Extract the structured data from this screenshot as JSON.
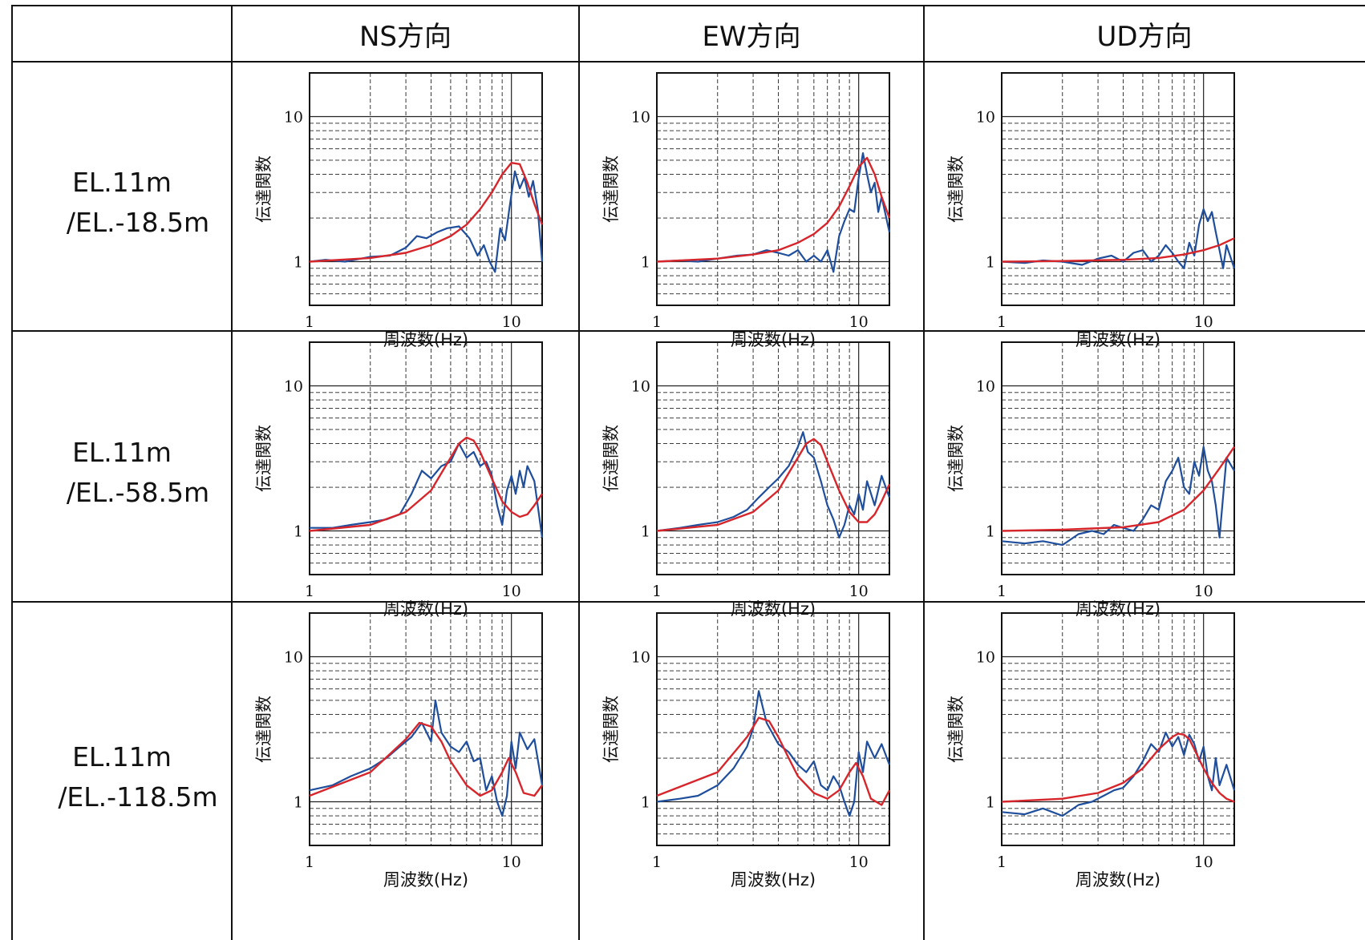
{
  "header": {
    "columns": [
      "NS方向",
      "EW方向",
      "UD方向"
    ]
  },
  "rows": [
    {
      "label_line1": "EL.11m",
      "label_line2": "/EL.-18.5m"
    },
    {
      "label_line1": "EL.11m",
      "label_line2": "/EL.-58.5m"
    },
    {
      "label_line1": "EL.11m",
      "label_line2": "/EL.-118.5m"
    }
  ],
  "axes": {
    "xlabel": "周波数(Hz)",
    "ylabel": "伝達関数",
    "xticks": [
      "1",
      "10"
    ],
    "yticks": [
      "1",
      "10"
    ]
  },
  "colors": {
    "observed": "#1f4e9c",
    "model": "#d7262b",
    "grid": "#222222",
    "frame": "#111111"
  },
  "chart_data": [
    {
      "type": "line",
      "row": 0,
      "col": 0,
      "xscale": "log",
      "yscale": "log",
      "xlim": [
        1,
        14.2
      ],
      "ylim": [
        0.5,
        20
      ],
      "series": [
        {
          "kind": "observed",
          "x": [
            1,
            1.2,
            1.5,
            1.8,
            2,
            2.5,
            3,
            3.4,
            3.8,
            4.3,
            4.8,
            5.5,
            6.2,
            6.8,
            7.3,
            7.8,
            8.3,
            8.8,
            9.3,
            9.8,
            10.4,
            11.0,
            11.6,
            12.2,
            12.8,
            13.5,
            14.2
          ],
          "y": [
            1.0,
            1.03,
            1.0,
            1.05,
            1.08,
            1.1,
            1.25,
            1.5,
            1.45,
            1.6,
            1.7,
            1.75,
            1.45,
            1.1,
            1.3,
            1.0,
            0.85,
            1.7,
            1.4,
            2.4,
            4.2,
            3.2,
            3.8,
            2.8,
            3.6,
            2.3,
            1.0
          ]
        },
        {
          "kind": "model",
          "x": [
            1,
            2,
            3,
            4,
            5,
            6,
            7,
            8,
            9,
            10,
            11,
            12,
            13,
            14.2
          ],
          "y": [
            1.0,
            1.06,
            1.15,
            1.3,
            1.5,
            1.8,
            2.3,
            3.0,
            4.0,
            4.8,
            4.7,
            3.5,
            2.5,
            1.8
          ]
        }
      ]
    },
    {
      "type": "line",
      "row": 0,
      "col": 1,
      "xscale": "log",
      "yscale": "log",
      "xlim": [
        1,
        14.2
      ],
      "ylim": [
        0.5,
        20
      ],
      "series": [
        {
          "kind": "observed",
          "x": [
            1,
            1.3,
            1.6,
            2.0,
            2.5,
            3.0,
            3.5,
            4.0,
            4.5,
            5.0,
            5.5,
            6.0,
            6.5,
            7.0,
            7.5,
            8.0,
            8.5,
            9.0,
            9.5,
            10.0,
            10.5,
            11.0,
            11.5,
            12.0,
            12.5,
            13.0,
            14.2
          ],
          "y": [
            1.0,
            1.02,
            1.0,
            1.05,
            1.1,
            1.12,
            1.2,
            1.15,
            1.1,
            1.2,
            1.0,
            1.1,
            1.0,
            1.2,
            0.85,
            1.5,
            1.9,
            2.3,
            2.2,
            3.8,
            5.6,
            4.0,
            3.0,
            3.5,
            2.2,
            2.8,
            1.6
          ]
        },
        {
          "kind": "model",
          "x": [
            1,
            2,
            3,
            4,
            5,
            6,
            7,
            8,
            9,
            10,
            11,
            12,
            13,
            14.2
          ],
          "y": [
            1.0,
            1.05,
            1.12,
            1.2,
            1.35,
            1.55,
            1.85,
            2.4,
            3.3,
            4.5,
            5.2,
            4.0,
            2.8,
            2.0
          ]
        }
      ]
    },
    {
      "type": "line",
      "row": 0,
      "col": 2,
      "xscale": "log",
      "yscale": "log",
      "xlim": [
        1,
        14.2
      ],
      "ylim": [
        0.5,
        20
      ],
      "series": [
        {
          "kind": "observed",
          "x": [
            1,
            1.3,
            1.6,
            2.0,
            2.5,
            3.0,
            3.5,
            4.0,
            4.5,
            5.0,
            5.5,
            6.0,
            6.5,
            7.0,
            7.5,
            8.0,
            8.5,
            9.0,
            9.5,
            10.0,
            10.5,
            11.0,
            11.5,
            12.0,
            12.5,
            13.0,
            14.2
          ],
          "y": [
            1.0,
            0.98,
            1.02,
            1.0,
            0.95,
            1.05,
            1.1,
            1.0,
            1.15,
            1.2,
            1.0,
            1.1,
            1.3,
            1.15,
            1.0,
            0.9,
            1.35,
            1.1,
            1.8,
            2.3,
            1.9,
            2.2,
            1.6,
            1.2,
            0.9,
            1.3,
            0.9
          ]
        },
        {
          "kind": "model",
          "x": [
            1,
            2,
            4,
            6,
            8,
            10,
            12,
            14.2
          ],
          "y": [
            1.0,
            1.01,
            1.03,
            1.06,
            1.12,
            1.2,
            1.3,
            1.45
          ]
        }
      ]
    },
    {
      "type": "line",
      "row": 1,
      "col": 0,
      "xscale": "log",
      "yscale": "log",
      "xlim": [
        1,
        14.2
      ],
      "ylim": [
        0.5,
        20
      ],
      "series": [
        {
          "kind": "observed",
          "x": [
            1,
            1.3,
            1.6,
            2.0,
            2.4,
            2.8,
            3.2,
            3.6,
            4.0,
            4.5,
            5.0,
            5.5,
            6.0,
            6.5,
            7.0,
            7.5,
            8.0,
            8.5,
            9.0,
            9.5,
            10.0,
            10.5,
            11.0,
            11.5,
            12.0,
            13.0,
            14.2
          ],
          "y": [
            1.05,
            1.05,
            1.1,
            1.15,
            1.2,
            1.3,
            1.8,
            2.6,
            2.3,
            2.8,
            3.0,
            4.0,
            3.2,
            3.5,
            2.8,
            3.0,
            2.4,
            1.5,
            1.1,
            1.9,
            2.4,
            1.8,
            2.6,
            2.0,
            2.8,
            2.2,
            0.9
          ]
        },
        {
          "kind": "model",
          "x": [
            1,
            2,
            3,
            4,
            5,
            5.5,
            6,
            6.5,
            7,
            8,
            9,
            10,
            11,
            12,
            13,
            14.2
          ],
          "y": [
            1.0,
            1.1,
            1.35,
            1.9,
            3.2,
            4.0,
            4.4,
            4.2,
            3.5,
            2.3,
            1.6,
            1.35,
            1.25,
            1.3,
            1.5,
            1.8
          ]
        }
      ]
    },
    {
      "type": "line",
      "row": 1,
      "col": 1,
      "xscale": "log",
      "yscale": "log",
      "xlim": [
        1,
        14.2
      ],
      "ylim": [
        0.5,
        20
      ],
      "series": [
        {
          "kind": "observed",
          "x": [
            1,
            1.3,
            1.6,
            2.0,
            2.4,
            2.8,
            3.2,
            3.6,
            4.0,
            4.5,
            5.0,
            5.3,
            5.6,
            6.0,
            6.5,
            7.0,
            7.5,
            8.0,
            8.5,
            9.0,
            9.5,
            10.0,
            10.5,
            11.0,
            12.0,
            13.0,
            14.2
          ],
          "y": [
            1.0,
            1.05,
            1.1,
            1.15,
            1.25,
            1.4,
            1.7,
            2.0,
            2.3,
            2.8,
            3.8,
            4.8,
            3.5,
            3.2,
            2.2,
            1.5,
            1.2,
            0.9,
            1.1,
            1.5,
            1.3,
            1.8,
            1.4,
            2.2,
            1.5,
            2.4,
            1.7
          ]
        },
        {
          "kind": "model",
          "x": [
            1,
            2,
            3,
            4,
            5,
            5.5,
            6,
            6.5,
            7,
            8,
            9,
            10,
            11,
            12,
            13,
            14.2
          ],
          "y": [
            1.0,
            1.1,
            1.35,
            1.9,
            3.2,
            4.0,
            4.3,
            3.9,
            3.0,
            1.9,
            1.35,
            1.15,
            1.15,
            1.3,
            1.6,
            2.1
          ]
        }
      ]
    },
    {
      "type": "line",
      "row": 1,
      "col": 2,
      "xscale": "log",
      "yscale": "log",
      "xlim": [
        1,
        14.2
      ],
      "ylim": [
        0.5,
        20
      ],
      "series": [
        {
          "kind": "observed",
          "x": [
            1,
            1.3,
            1.6,
            2.0,
            2.4,
            2.8,
            3.2,
            3.6,
            4.0,
            4.5,
            5.0,
            5.5,
            6.0,
            6.5,
            7.0,
            7.5,
            8.0,
            8.5,
            9.0,
            9.5,
            10.0,
            10.5,
            11.0,
            11.5,
            12.0,
            13.0,
            14.2
          ],
          "y": [
            0.85,
            0.82,
            0.85,
            0.8,
            0.95,
            1.0,
            0.95,
            1.1,
            1.05,
            1.0,
            1.2,
            1.5,
            1.4,
            2.2,
            2.6,
            3.2,
            2.0,
            1.8,
            3.0,
            2.4,
            3.8,
            2.6,
            2.2,
            1.5,
            0.9,
            3.2,
            2.6
          ]
        },
        {
          "kind": "model",
          "x": [
            1,
            2,
            4,
            6,
            8,
            10,
            12,
            14.2
          ],
          "y": [
            1.0,
            1.02,
            1.06,
            1.15,
            1.4,
            1.9,
            2.7,
            3.8
          ]
        }
      ]
    },
    {
      "type": "line",
      "row": 2,
      "col": 0,
      "xscale": "log",
      "yscale": "log",
      "xlim": [
        1,
        14.2
      ],
      "ylim": [
        0.5,
        20
      ],
      "series": [
        {
          "kind": "observed",
          "x": [
            1,
            1.3,
            1.6,
            2.0,
            2.4,
            2.8,
            3.2,
            3.6,
            4.0,
            4.2,
            4.5,
            5.0,
            5.5,
            6.0,
            6.5,
            7.0,
            7.5,
            8.0,
            8.5,
            9.0,
            9.5,
            10.0,
            10.5,
            11.0,
            12.0,
            13.0,
            14.2
          ],
          "y": [
            1.2,
            1.3,
            1.5,
            1.7,
            2.0,
            2.4,
            2.8,
            3.5,
            2.6,
            5.0,
            3.0,
            2.4,
            2.2,
            2.6,
            1.9,
            2.0,
            1.2,
            1.5,
            1.0,
            0.8,
            1.1,
            2.6,
            1.7,
            3.0,
            2.3,
            2.7,
            1.3
          ]
        },
        {
          "kind": "model",
          "x": [
            1,
            2,
            3,
            3.5,
            4,
            4.5,
            5,
            6,
            7,
            8,
            9,
            9.7,
            10.5,
            11.5,
            13,
            14.2
          ],
          "y": [
            1.1,
            1.6,
            2.7,
            3.5,
            3.3,
            2.6,
            1.9,
            1.3,
            1.1,
            1.2,
            1.6,
            2.0,
            1.6,
            1.15,
            1.1,
            1.3
          ]
        }
      ]
    },
    {
      "type": "line",
      "row": 2,
      "col": 1,
      "xscale": "log",
      "yscale": "log",
      "xlim": [
        1,
        14.2
      ],
      "ylim": [
        0.5,
        20
      ],
      "series": [
        {
          "kind": "observed",
          "x": [
            1,
            1.3,
            1.6,
            2.0,
            2.4,
            2.8,
            3.0,
            3.2,
            3.5,
            4.0,
            4.5,
            5.0,
            5.5,
            6.0,
            6.5,
            7.0,
            7.5,
            8.0,
            8.5,
            9.0,
            9.5,
            10.0,
            10.5,
            11.0,
            12.0,
            13.0,
            14.2
          ],
          "y": [
            1.0,
            1.05,
            1.1,
            1.3,
            1.7,
            2.4,
            3.2,
            5.8,
            3.5,
            2.5,
            2.2,
            1.8,
            1.6,
            1.9,
            1.3,
            1.2,
            1.5,
            1.3,
            1.0,
            0.8,
            1.0,
            2.2,
            1.6,
            2.6,
            2.0,
            2.5,
            1.8
          ]
        },
        {
          "kind": "model",
          "x": [
            1,
            2,
            2.8,
            3.2,
            3.6,
            4,
            4.5,
            5,
            6,
            7,
            8,
            9,
            9.7,
            10.5,
            11.5,
            13,
            14.2
          ],
          "y": [
            1.1,
            1.6,
            2.8,
            3.8,
            3.6,
            2.8,
            2.0,
            1.5,
            1.15,
            1.05,
            1.2,
            1.6,
            1.85,
            1.5,
            1.05,
            0.95,
            1.2
          ]
        }
      ]
    },
    {
      "type": "line",
      "row": 2,
      "col": 2,
      "xscale": "log",
      "yscale": "log",
      "xlim": [
        1,
        14.2
      ],
      "ylim": [
        0.5,
        20
      ],
      "series": [
        {
          "kind": "observed",
          "x": [
            1,
            1.3,
            1.6,
            2.0,
            2.4,
            2.8,
            3.2,
            3.6,
            4.0,
            4.5,
            5.0,
            5.5,
            6.0,
            6.5,
            7.0,
            7.5,
            8.0,
            8.5,
            9.0,
            9.5,
            10.0,
            10.5,
            11.0,
            11.5,
            12.0,
            13.0,
            14.2
          ],
          "y": [
            0.85,
            0.82,
            0.9,
            0.8,
            0.95,
            1.0,
            1.1,
            1.2,
            1.25,
            1.5,
            1.9,
            2.5,
            2.2,
            3.0,
            2.4,
            2.8,
            2.1,
            2.9,
            2.5,
            1.9,
            2.4,
            1.5,
            1.2,
            2.0,
            1.3,
            1.8,
            1.2
          ]
        },
        {
          "kind": "model",
          "x": [
            1,
            2,
            3,
            4,
            5,
            6,
            7,
            7.5,
            8,
            8.5,
            9,
            10,
            11,
            12,
            13,
            14.2
          ],
          "y": [
            1.0,
            1.05,
            1.15,
            1.35,
            1.7,
            2.3,
            2.8,
            2.95,
            2.9,
            2.7,
            2.3,
            1.7,
            1.35,
            1.15,
            1.05,
            1.0
          ]
        }
      ]
    }
  ]
}
